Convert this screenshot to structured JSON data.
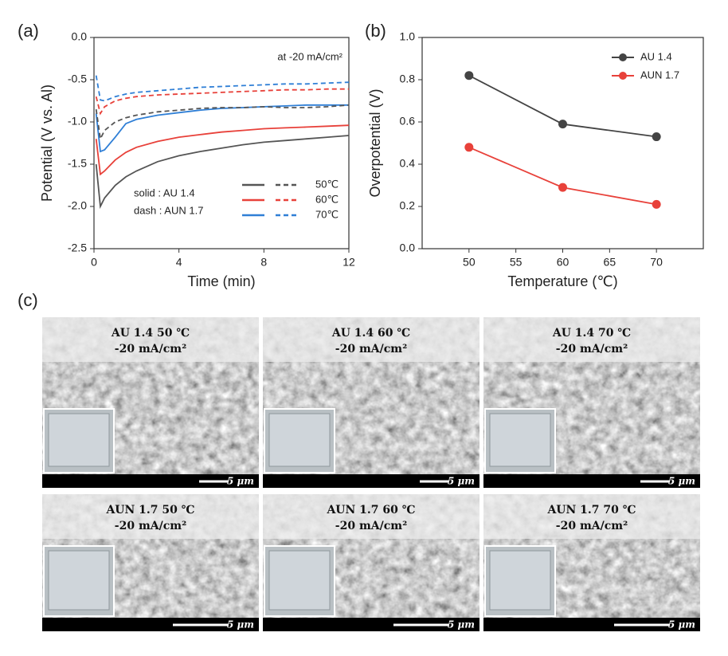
{
  "panel_labels": [
    "(a)",
    "(b)",
    "(c)"
  ],
  "chart_data": [
    {
      "type": "line",
      "x_label": "Time (min)",
      "y_label": "Potential (V vs. Al)",
      "annotation": "at -20 mA/cm²",
      "legend_notes": [
        "solid : AU 1.4",
        "dash : AUN 1.7"
      ],
      "xlim": [
        0,
        12
      ],
      "xticks": [
        0,
        4,
        8,
        12
      ],
      "ylim": [
        -2.5,
        0
      ],
      "yticks": [
        {
          "value": 0,
          "label": "0.0"
        },
        -0.5,
        {
          "value": -1,
          "label": "-1.0"
        },
        -1.5,
        {
          "value": -2,
          "label": "-2.0"
        },
        -2.5
      ],
      "x": [
        0.1,
        0.3,
        0.5,
        1,
        1.5,
        2,
        3,
        4,
        5,
        6,
        7,
        8,
        9,
        10,
        11,
        12
      ],
      "series": [
        {
          "name": "50℃",
          "color": "#555555",
          "style": "solid",
          "values": [
            -1.5,
            -2.0,
            -1.9,
            -1.75,
            -1.65,
            -1.58,
            -1.47,
            -1.4,
            -1.35,
            -1.31,
            -1.27,
            -1.24,
            -1.22,
            -1.2,
            -1.18,
            -1.16
          ]
        },
        {
          "name": "60℃",
          "color": "#e8413a",
          "style": "solid",
          "values": [
            -1.2,
            -1.62,
            -1.58,
            -1.45,
            -1.36,
            -1.3,
            -1.23,
            -1.18,
            -1.15,
            -1.12,
            -1.1,
            -1.08,
            -1.07,
            -1.06,
            -1.05,
            -1.04
          ]
        },
        {
          "name": "70℃",
          "color": "#2f7fd6",
          "style": "solid",
          "values": [
            -0.9,
            -1.35,
            -1.33,
            -1.18,
            -1.02,
            -0.97,
            -0.92,
            -0.89,
            -0.86,
            -0.84,
            -0.83,
            -0.82,
            -0.81,
            -0.8,
            -0.8,
            -0.8
          ]
        },
        {
          "color": "#555555",
          "style": "dash",
          "values": [
            -0.85,
            -1.2,
            -1.1,
            -1.0,
            -0.95,
            -0.92,
            -0.88,
            -0.86,
            -0.84,
            -0.83,
            -0.83,
            -0.82,
            -0.83,
            -0.83,
            -0.82,
            -0.8
          ]
        },
        {
          "color": "#e8413a",
          "style": "dash",
          "values": [
            -0.7,
            -0.9,
            -0.82,
            -0.75,
            -0.72,
            -0.7,
            -0.68,
            -0.67,
            -0.66,
            -0.65,
            -0.64,
            -0.63,
            -0.62,
            -0.62,
            -0.61,
            -0.61
          ]
        },
        {
          "color": "#2f7fd6",
          "style": "dash",
          "values": [
            -0.45,
            -0.74,
            -0.75,
            -0.7,
            -0.67,
            -0.65,
            -0.63,
            -0.61,
            -0.59,
            -0.58,
            -0.57,
            -0.56,
            -0.55,
            -0.55,
            -0.54,
            -0.53
          ]
        }
      ]
    },
    {
      "type": "line",
      "x_label": "Temperature (℃)",
      "y_label": "Overpotential (V)",
      "legend": "upper right",
      "markers": true,
      "xlim": [
        45,
        75
      ],
      "xticks": [
        50,
        55,
        60,
        65,
        70
      ],
      "ylim": [
        0,
        1
      ],
      "yticks": [
        {
          "value": 0,
          "label": "0.0"
        },
        0.2,
        0.4,
        0.6,
        0.8,
        {
          "value": 1,
          "label": "1.0"
        }
      ],
      "x": [
        50,
        60,
        70
      ],
      "series": [
        {
          "name": "AU 1.4",
          "color": "#444444",
          "values": [
            0.82,
            0.59,
            0.53
          ]
        },
        {
          "name": "AUN 1.7",
          "color": "#e8413a",
          "values": [
            0.48,
            0.29,
            0.21
          ]
        }
      ]
    }
  ],
  "micrographs": [
    {
      "title": "AU 1.4 50 ℃",
      "current": "-20 mA/cm²",
      "scale": "5 μm"
    },
    {
      "title": "AU 1.4 60 ℃",
      "current": "-20 mA/cm²",
      "scale": "5 μm"
    },
    {
      "title": "AU 1.4 70 ℃",
      "current": "-20 mA/cm²",
      "scale": "5 μm"
    },
    {
      "title": "AUN 1.7 50 ℃",
      "current": "-20 mA/cm²",
      "scale": "5 μm"
    },
    {
      "title": "AUN 1.7 60 ℃",
      "current": "-20 mA/cm²",
      "scale": "5 μm"
    },
    {
      "title": "AUN 1.7 70 ℃",
      "current": "-20 mA/cm²",
      "scale": "5 μm"
    }
  ]
}
